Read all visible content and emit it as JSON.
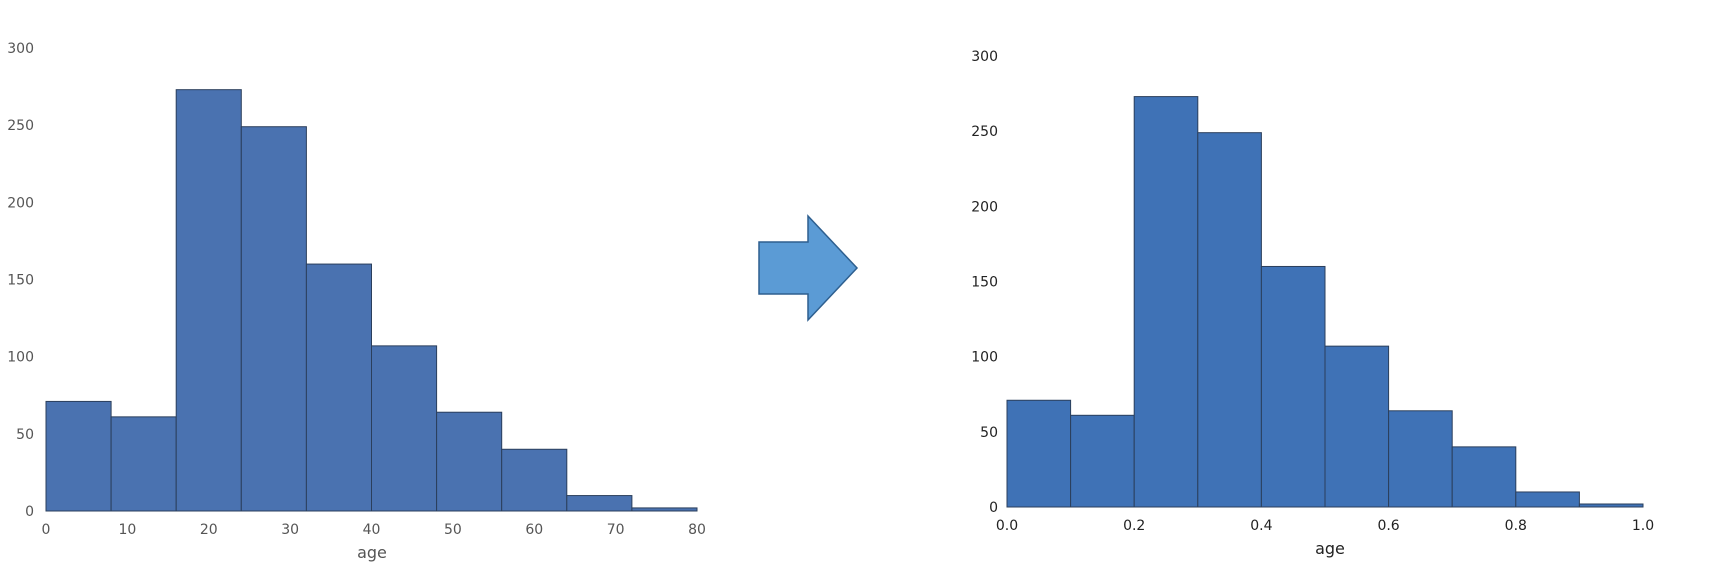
{
  "colors": {
    "left_bar_fill": "#4a72b0",
    "right_bar_fill": "#3f72b6",
    "bar_edge": "#2b3f5c",
    "arrow_fill": "#5b9bd5",
    "arrow_edge": "#2e5f8f",
    "left_tick_text": "#555555",
    "right_tick_text": "#222222"
  },
  "arrow": {
    "icon": "right-arrow-icon"
  },
  "chart_data": [
    {
      "type": "bar",
      "title": "",
      "xlabel": "age",
      "ylabel": "",
      "bin_edges": [
        0,
        8,
        16,
        24,
        32,
        40,
        48,
        56,
        64,
        72,
        80
      ],
      "values": [
        71,
        61,
        273,
        249,
        160,
        107,
        64,
        40,
        10,
        2
      ],
      "xlim": [
        0,
        80
      ],
      "ylim": [
        0,
        300
      ],
      "xticks": [
        "0",
        "10",
        "20",
        "30",
        "40",
        "50",
        "60",
        "70",
        "80"
      ],
      "yticks": [
        "0",
        "50",
        "100",
        "150",
        "200",
        "250",
        "300"
      ],
      "grid": false
    },
    {
      "type": "bar",
      "title": "",
      "xlabel": "age",
      "ylabel": "",
      "bin_edges": [
        0.0,
        0.1,
        0.2,
        0.3,
        0.4,
        0.5,
        0.6,
        0.7,
        0.8,
        0.9,
        1.0
      ],
      "values": [
        71,
        61,
        273,
        249,
        160,
        107,
        64,
        40,
        10,
        2
      ],
      "xlim": [
        0.0,
        1.0
      ],
      "ylim": [
        0,
        300
      ],
      "xticks": [
        "0.0",
        "0.2",
        "0.4",
        "0.6",
        "0.8",
        "1.0"
      ],
      "yticks": [
        "0",
        "50",
        "100",
        "150",
        "200",
        "250",
        "300"
      ],
      "grid": false
    }
  ]
}
